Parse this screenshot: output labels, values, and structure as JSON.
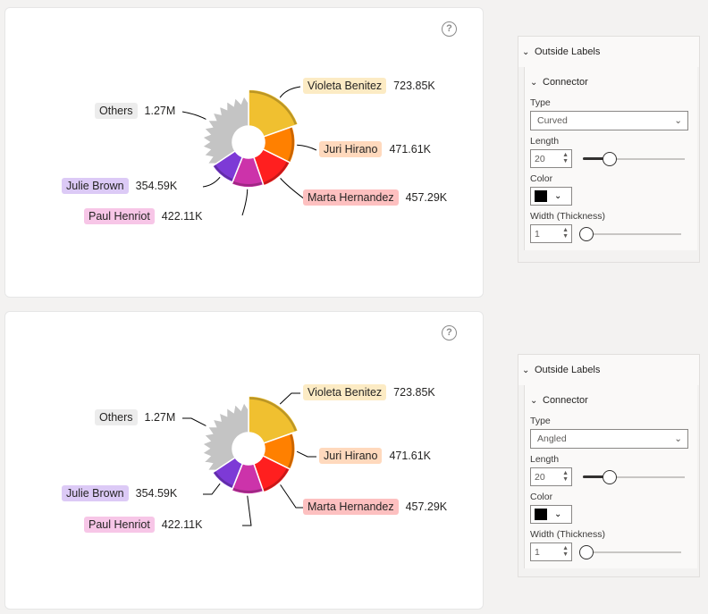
{
  "help_label": "?",
  "colors": {
    "violeta": "#f0c030",
    "juri": "#ff8000",
    "marta": "#ff1f1f",
    "paul": "#cc33aa",
    "julie": "#7d3ad6",
    "others": "#c4c4c4"
  },
  "chart_data": [
    {
      "type": "pie",
      "variant": "donut",
      "connector_type": "Curved",
      "categories": [
        "Violeta Benitez",
        "Juri Hirano",
        "Marta Hernandez",
        "Paul Henriot",
        "Julie Brown",
        "Others"
      ],
      "values": [
        723850,
        471610,
        457290,
        422110,
        354590,
        1270000
      ],
      "value_labels": [
        "723.85K",
        "471.61K",
        "457.29K",
        "422.11K",
        "354.59K",
        "1.27M"
      ]
    },
    {
      "type": "pie",
      "variant": "donut",
      "connector_type": "Angled",
      "categories": [
        "Violeta Benitez",
        "Juri Hirano",
        "Marta Hernandez",
        "Paul Henriot",
        "Julie Brown",
        "Others"
      ],
      "values": [
        723850,
        471610,
        457290,
        422110,
        354590,
        1270000
      ],
      "value_labels": [
        "723.85K",
        "471.61K",
        "457.29K",
        "422.11K",
        "354.59K",
        "1.27M"
      ]
    }
  ],
  "panels": [
    {
      "header": "Outside Labels",
      "sub": "Connector",
      "type_label": "Type",
      "type_value": "Curved",
      "length_label": "Length",
      "length_value": "20",
      "color_label": "Color",
      "width_label": "Width (Thickness)",
      "width_value": "1",
      "length_slider": 0.22,
      "width_slider": 0.0
    },
    {
      "header": "Outside Labels",
      "sub": "Connector",
      "type_label": "Type",
      "type_value": "Angled",
      "length_label": "Length",
      "length_value": "20",
      "color_label": "Color",
      "width_label": "Width (Thickness)",
      "width_value": "1",
      "length_slider": 0.22,
      "width_slider": 0.0
    }
  ]
}
